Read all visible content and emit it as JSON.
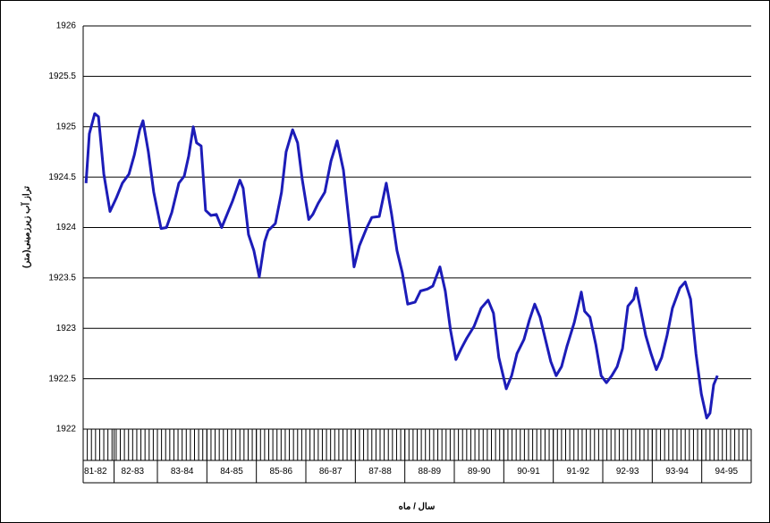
{
  "chart_data": {
    "type": "line",
    "ylabel": "تراز آب زیرزمینی(متر)",
    "xlabel": "سال / ماه",
    "xlim": [
      0,
      162
    ],
    "xticks": [
      {
        "value": 3,
        "label": "81-82"
      },
      {
        "value": 12,
        "label": "82-83"
      },
      {
        "value": 24,
        "label": "83-84"
      },
      {
        "value": 36,
        "label": "84-85"
      },
      {
        "value": 48,
        "label": "85-86"
      },
      {
        "value": 60,
        "label": "86-87"
      },
      {
        "value": 72,
        "label": "87-88"
      },
      {
        "value": 84,
        "label": "88-89"
      },
      {
        "value": 96,
        "label": "89-90"
      },
      {
        "value": 108,
        "label": "90-91"
      },
      {
        "value": 120,
        "label": "91-92"
      },
      {
        "value": 132,
        "label": "92-93"
      },
      {
        "value": 144,
        "label": "93-94"
      },
      {
        "value": 156,
        "label": "94-95"
      }
    ],
    "ylim": [
      1922,
      1926
    ],
    "yticks": [
      1922,
      1922.5,
      1923,
      1923.5,
      1924,
      1924.5,
      1925,
      1925.5,
      1926
    ],
    "grid": true,
    "series": [
      {
        "color": "#1c1cb8",
        "x": [
          0.7,
          1.5,
          2.8,
          3.7,
          5.0,
          6.5,
          8.0,
          9.5,
          11.1,
          12.4,
          13.7,
          14.5,
          15.8,
          17.1,
          18.9,
          20.2,
          21.5,
          23.2,
          24.5,
          25.6,
          26.7,
          27.5,
          28.6,
          29.7,
          31.0,
          32.3,
          33.6,
          34.9,
          36.2,
          38.0,
          38.8,
          40.1,
          41.4,
          42.7,
          44.0,
          44.9,
          46.6,
          48.1,
          49.2,
          50.8,
          52.0,
          53.1,
          54.7,
          55.7,
          57.0,
          58.6,
          60.1,
          61.6,
          63.1,
          64.4,
          65.7,
          67.0,
          68.8,
          70.0,
          71.8,
          73.5,
          74.8,
          76.1,
          77.4,
          78.7,
          80.5,
          81.8,
          83.5,
          84.8,
          86.5,
          87.8,
          89.1,
          90.4,
          91.7,
          93.0,
          94.8,
          96.5,
          98.2,
          99.5,
          100.8,
          102.6,
          103.9,
          105.2,
          106.9,
          108.2,
          109.5,
          110.8,
          112.1,
          113.4,
          114.7,
          116.0,
          117.3,
          119.1,
          120.8,
          121.6,
          122.9,
          124.3,
          125.6,
          126.9,
          128.2,
          129.5,
          130.8,
          132.1,
          133.5,
          134.1,
          135.1,
          136.4,
          137.7,
          139.0,
          140.3,
          141.6,
          142.9,
          144.7,
          146.0,
          147.3,
          148.6,
          149.9,
          151.2,
          152.0,
          152.9,
          153.8
        ],
        "values": [
          1924.44,
          1924.93,
          1925.13,
          1925.1,
          1924.53,
          1924.16,
          1924.29,
          1924.44,
          1924.53,
          1924.72,
          1924.97,
          1925.06,
          1924.75,
          1924.35,
          1923.99,
          1924.0,
          1924.15,
          1924.44,
          1924.51,
          1924.71,
          1925.0,
          1924.84,
          1924.81,
          1924.17,
          1924.12,
          1924.13,
          1924.0,
          1924.13,
          1924.26,
          1924.47,
          1924.39,
          1923.93,
          1923.77,
          1923.51,
          1923.86,
          1923.97,
          1924.04,
          1924.35,
          1924.75,
          1924.97,
          1924.84,
          1924.48,
          1924.08,
          1924.13,
          1924.24,
          1924.35,
          1924.66,
          1924.86,
          1924.57,
          1924.08,
          1923.61,
          1923.82,
          1924.0,
          1924.1,
          1924.11,
          1924.44,
          1924.13,
          1923.77,
          1923.55,
          1923.24,
          1923.26,
          1923.37,
          1923.39,
          1923.42,
          1923.61,
          1923.37,
          1922.98,
          1922.69,
          1922.8,
          1922.9,
          1923.02,
          1923.2,
          1923.28,
          1923.15,
          1922.71,
          1922.4,
          1922.53,
          1922.75,
          1922.89,
          1923.08,
          1923.24,
          1923.11,
          1922.89,
          1922.67,
          1922.53,
          1922.62,
          1922.82,
          1923.06,
          1923.36,
          1923.17,
          1923.11,
          1922.84,
          1922.53,
          1922.46,
          1922.53,
          1922.62,
          1922.8,
          1923.22,
          1923.29,
          1923.4,
          1923.2,
          1922.93,
          1922.75,
          1922.59,
          1922.71,
          1922.93,
          1923.2,
          1923.4,
          1923.46,
          1923.29,
          1922.75,
          1922.35,
          1922.11,
          1922.16,
          1922.44,
          1922.53
        ]
      }
    ]
  }
}
